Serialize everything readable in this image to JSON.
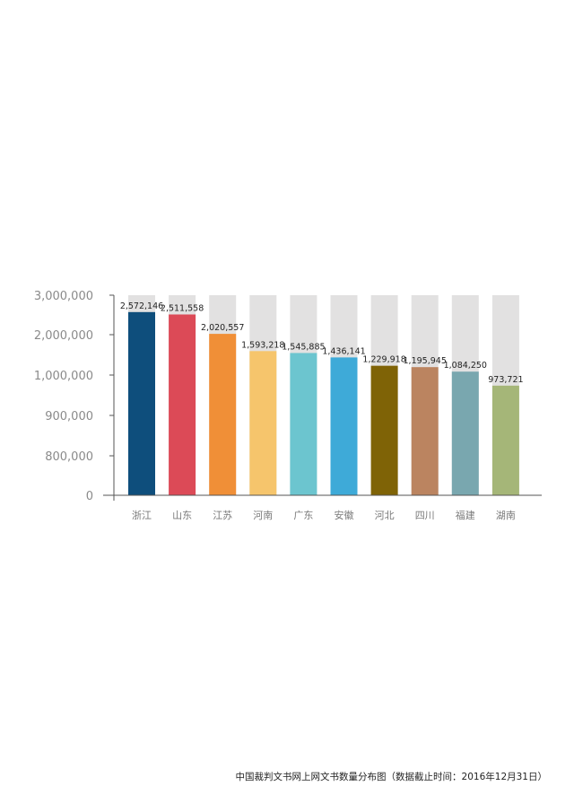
{
  "caption": "中国裁判文书网上网文书数量分布图（数据截止时间：2016年12月31日）",
  "chart_data": {
    "type": "bar",
    "categories": [
      "浙江",
      "山东",
      "江苏",
      "河南",
      "广东",
      "安徽",
      "河北",
      "四川",
      "福建",
      "湖南"
    ],
    "values": [
      2572146,
      2511558,
      2020557,
      1593218,
      1545885,
      1436141,
      1229918,
      1195945,
      1084250,
      973721
    ],
    "data_labels": [
      "2,572,146",
      "2,511,558",
      "2,020,557",
      "1,593,218",
      "1,545,885",
      "1,436,141",
      "1,229,918",
      "1,195,945",
      "1,084,250",
      "973,721"
    ],
    "y_ticks": [
      "0",
      "800,000",
      "900,000",
      "1,000,000",
      "2,000,000",
      "3,000,000"
    ],
    "y_tick_values": [
      0,
      800000,
      900000,
      1000000,
      2000000,
      3000000
    ],
    "axis_note": "non-linear y axis; tick labels equally spaced",
    "background_bar_value": 3000000,
    "colors": [
      "#0e4e7c",
      "#dc4a57",
      "#f08f37",
      "#f6c56c",
      "#6cc5cf",
      "#3eaad8",
      "#7f6306",
      "#bb8460",
      "#79a7af",
      "#a5b678"
    ],
    "background_bar_color": "#e2e1e1",
    "axis_color": "#555555",
    "grid": false,
    "title": "",
    "xlabel": "",
    "ylabel": ""
  }
}
